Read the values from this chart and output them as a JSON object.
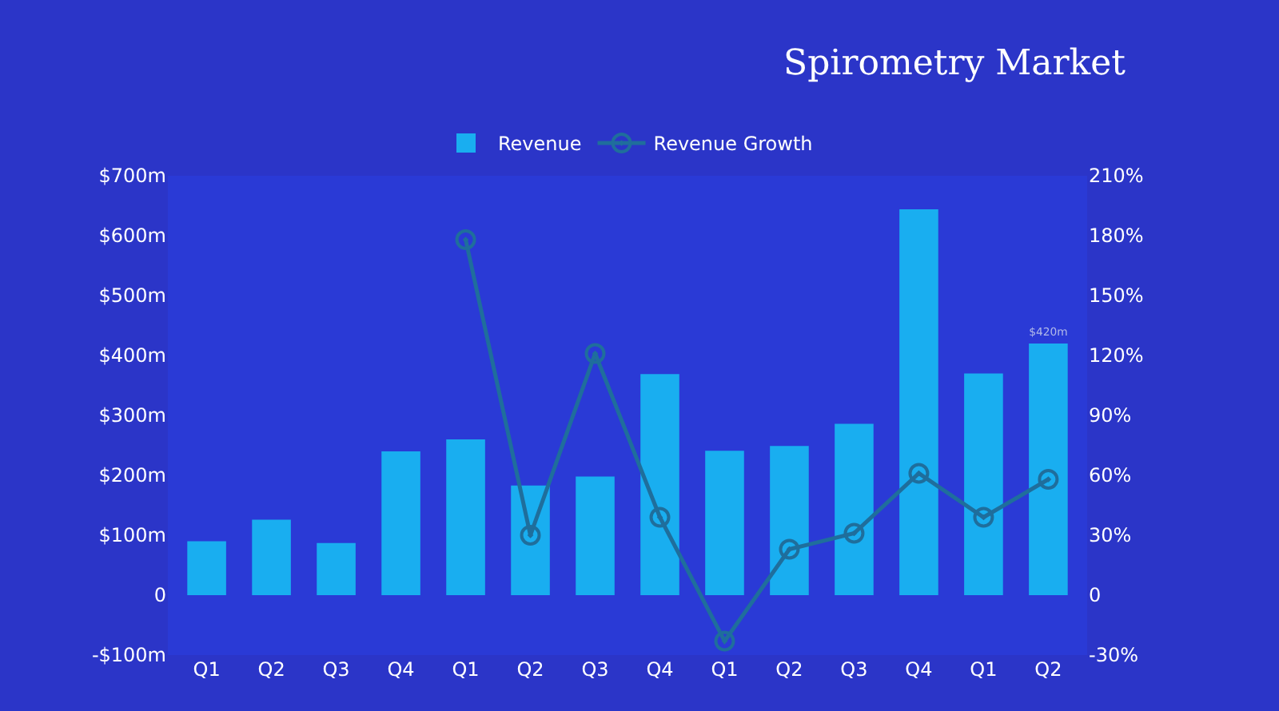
{
  "chart_data": {
    "type": "bar",
    "title": "Spirometry Market",
    "categories": [
      "Q1",
      "Q2",
      "Q3",
      "Q4",
      "Q1",
      "Q2",
      "Q3",
      "Q4",
      "Q1",
      "Q2",
      "Q3",
      "Q4",
      "Q1",
      "Q2"
    ],
    "series": [
      {
        "name": "Revenue",
        "color": "#19aef0",
        "values": [
          90,
          126,
          87,
          240,
          260,
          183,
          198,
          369,
          241,
          249,
          286,
          644,
          370,
          420
        ],
        "value_labels": [
          null,
          null,
          null,
          null,
          null,
          null,
          null,
          null,
          null,
          null,
          null,
          null,
          null,
          "$420m"
        ]
      },
      {
        "name": "Revenue Growth",
        "type": "line",
        "axis": "y2",
        "color": "#1f6e9c",
        "marker": "circle",
        "line_style": "solid",
        "values": [
          null,
          null,
          null,
          null,
          178,
          30,
          121,
          39,
          -23,
          23,
          31,
          61,
          39,
          58
        ]
      }
    ],
    "ylim": [
      -100,
      700
    ],
    "yticks": [
      {
        "value": -100,
        "label": "-$100m"
      },
      {
        "value": 0,
        "label": "0"
      },
      {
        "value": 100,
        "label": "$100m"
      },
      {
        "value": 200,
        "label": "$200m"
      },
      {
        "value": 300,
        "label": "$300m"
      },
      {
        "value": 400,
        "label": "$400m"
      },
      {
        "value": 500,
        "label": "$500m"
      },
      {
        "value": 600,
        "label": "$600m"
      },
      {
        "value": 700,
        "label": "$700m"
      }
    ],
    "y2lim": [
      -30,
      210
    ],
    "y2ticks": [
      {
        "value": -30,
        "label": "-30%"
      },
      {
        "value": 0,
        "label": "0"
      },
      {
        "value": 30,
        "label": "30%"
      },
      {
        "value": 60,
        "label": "60%"
      },
      {
        "value": 90,
        "label": "90%"
      },
      {
        "value": 120,
        "label": "120%"
      },
      {
        "value": 150,
        "label": "150%"
      },
      {
        "value": 180,
        "label": "180%"
      },
      {
        "value": 210,
        "label": "210%"
      }
    ],
    "grid": false,
    "legend": "top"
  }
}
